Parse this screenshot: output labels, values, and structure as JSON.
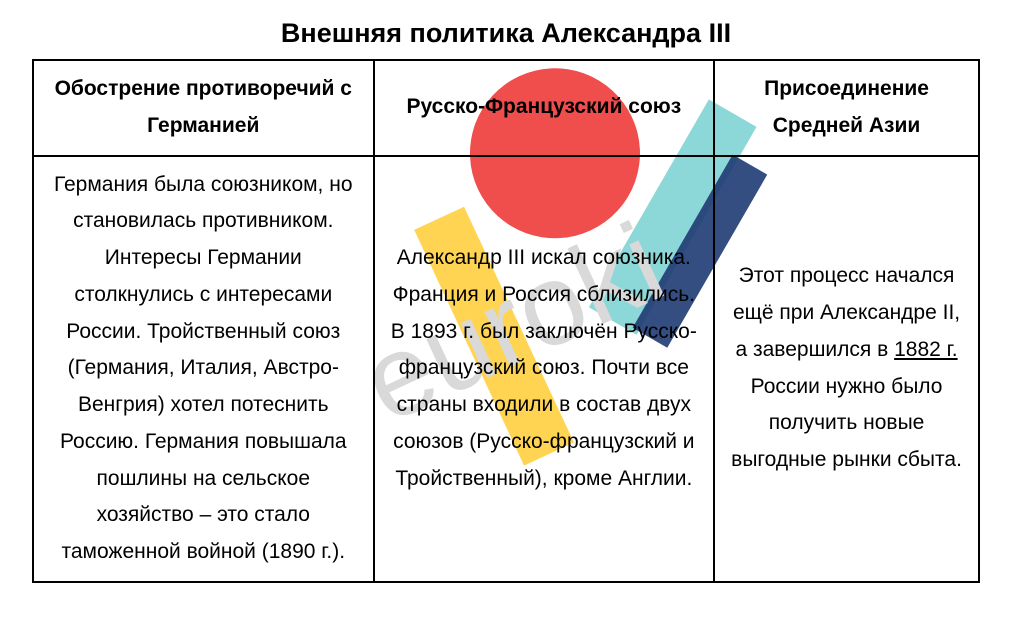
{
  "title": "Внешняя политика Александра III",
  "watermark": {
    "text": "euroki",
    "text_color": "#d9d9d9",
    "font_size": 115,
    "rotation_deg": 25,
    "shapes": {
      "circle_red": "#ee3a3a",
      "stripe_yellow": "#ffcf3f",
      "stripe_cyan": "#7fd3d3",
      "stripe_navy": "#1f3b73"
    }
  },
  "table": {
    "columns": [
      {
        "header": "Обострение противоречий с Германией",
        "width_pct": 36
      },
      {
        "header": "Русско-Французский союз",
        "width_pct": 36
      },
      {
        "header": "Присоединение Средней Азии",
        "width_pct": 28
      }
    ],
    "rows": [
      {
        "cells": [
          "Германия была союзником, но становилась противником. Интересы Германии столкнулись с интересами России. Тройственный союз (Германия, Италия, Австро-Венгрия) хотел потеснить Россию. Германия повышала пошлины на сельское хозяйство – это стало таможенной войной (1890 г.).",
          "Александр III искал союзника. Франция и Россия сблизились. В 1893 г. был заключён Русско-французский союз. Почти все страны входили в состав двух союзов (Русско-французский и Тройственный), кроме Англии.",
          {
            "pre": "Этот процесс начался ещё при Александре II, а завершился в ",
            "underline": "1882 г.",
            "post": " России нужно было получить новые выгодные рынки сбыта."
          }
        ]
      }
    ],
    "border_color": "#000000",
    "border_width": 2,
    "cell_fontsize": 21,
    "header_fontweight": "bold",
    "text_align": "center",
    "line_height": 1.75
  },
  "background_color": "#ffffff"
}
